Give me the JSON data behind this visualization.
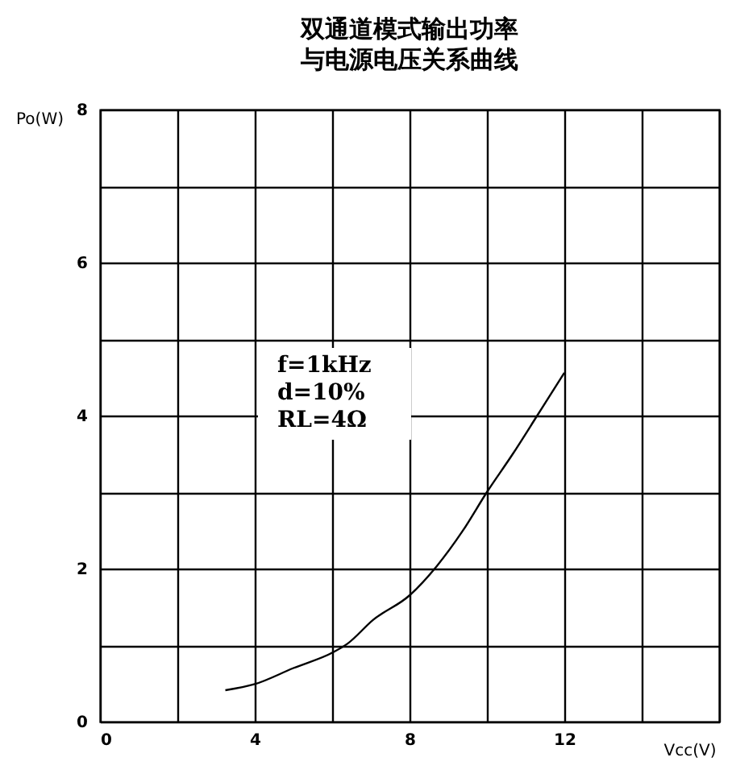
{
  "chart_data": {
    "type": "line",
    "title": [
      "双通道模式输出功率",
      "与电源电压关系曲线"
    ],
    "xlabel": "Vcc(V)",
    "ylabel": "Po(W)",
    "x": [
      3.24,
      4,
      5,
      6.04,
      6.4,
      7.06,
      8,
      8.7,
      9.37,
      10,
      10.67,
      11.3,
      12
    ],
    "series": [
      {
        "color": "#000000",
        "values": [
          0.41,
          0.49,
          0.7,
          0.91,
          1.02,
          1.33,
          1.65,
          2.03,
          2.49,
          3.0,
          3.5,
          4.0,
          4.56
        ]
      }
    ],
    "xlim": [
      0,
      16
    ],
    "ylim": [
      0,
      8
    ],
    "xticks": [
      0,
      {
        "value": 2,
        "label": null
      },
      4,
      {
        "value": 6,
        "label": null
      },
      8,
      {
        "value": 10,
        "label": null
      },
      12,
      {
        "value": 14,
        "label": null
      },
      {
        "value": 16,
        "label": null
      }
    ],
    "yticks": [
      0,
      {
        "value": 1,
        "label": null
      },
      2,
      {
        "value": 3,
        "label": null
      },
      4,
      {
        "value": 5,
        "label": null
      },
      6,
      {
        "value": 7,
        "label": null
      },
      8
    ],
    "grid": true,
    "legend": false,
    "marker": "none",
    "line_style": "solid",
    "annotations": [
      "f=1kHz",
      "d=10%",
      "RL=4Ω"
    ]
  }
}
